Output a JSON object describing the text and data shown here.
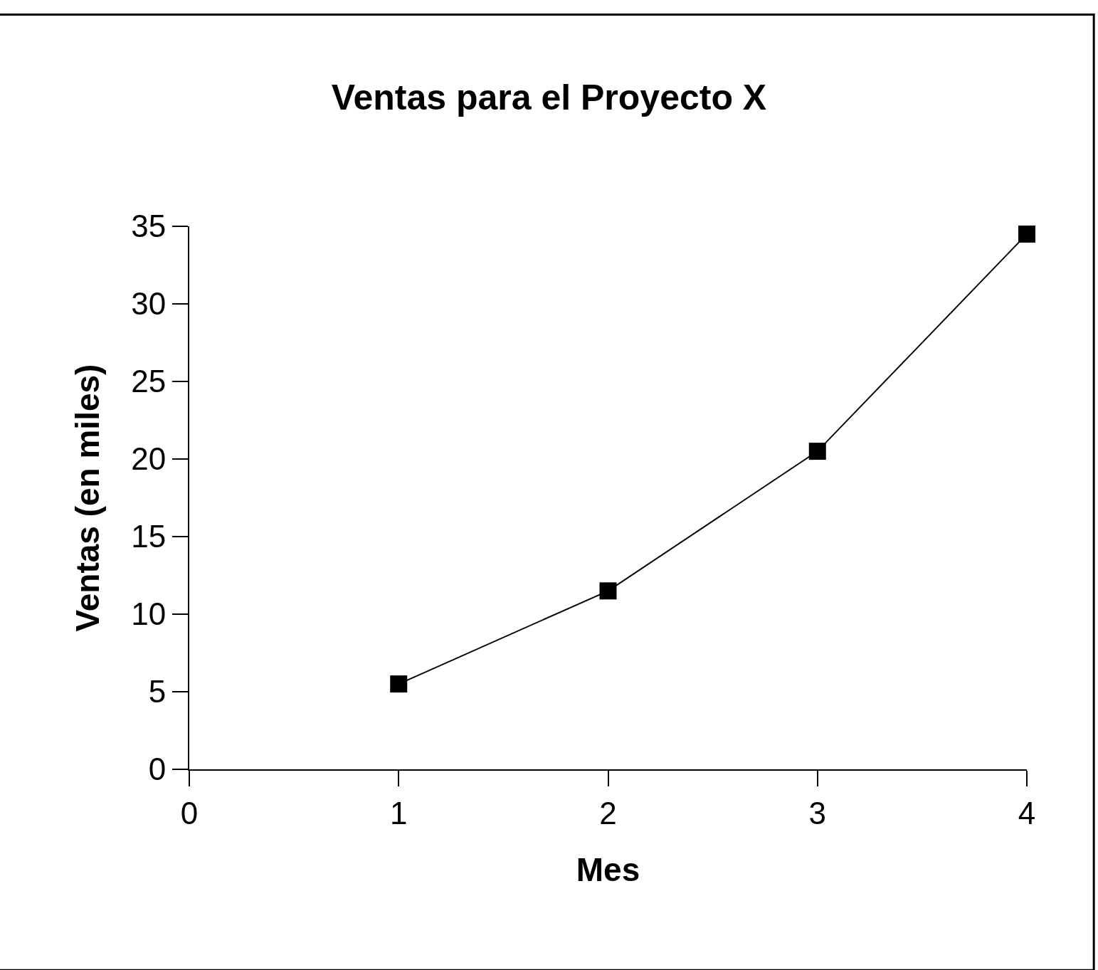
{
  "chart_data": {
    "type": "line",
    "title": "Ventas para el Proyecto X",
    "xlabel": "Mes",
    "ylabel": "Ventas (en miles)",
    "x": [
      1,
      2,
      3,
      4
    ],
    "series": [
      {
        "color": "#000000",
        "values": [
          5.5,
          11.5,
          20.5,
          34.5
        ]
      }
    ],
    "xlim": [
      0,
      4
    ],
    "xticks": [
      0,
      1,
      2,
      3,
      4
    ],
    "ylim": [
      0,
      35
    ],
    "yticks": [
      0,
      5,
      10,
      15,
      20,
      25,
      30,
      35
    ],
    "marker": "square",
    "line_style": "solid"
  }
}
